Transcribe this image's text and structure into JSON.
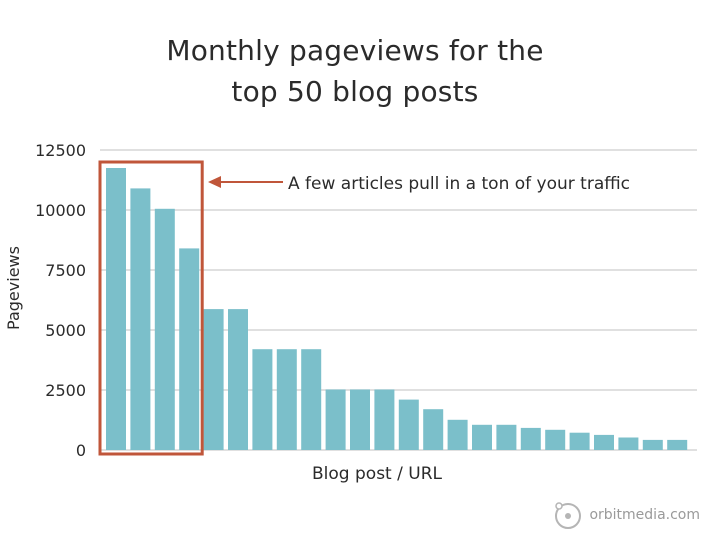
{
  "title_line1": "Monthly pageviews for the",
  "title_line2": "top 50 blog posts",
  "annotation": "A few articles pull in a ton of your traffic",
  "brand": "orbitmedia.com",
  "colors": {
    "bar": "#7bbfca",
    "highlight": "#c0563a",
    "grid": "#d6d6d6",
    "text": "#2b2b2b"
  },
  "chart_data": {
    "type": "bar",
    "xlabel": "Blog post / URL",
    "ylabel": "Pageviews",
    "ylim": [
      0,
      12500
    ],
    "yticks": [
      "12500",
      "10000",
      "7500",
      "5000",
      "2500",
      "0"
    ],
    "values": [
      11750,
      10900,
      10050,
      8400,
      5870,
      5870,
      4200,
      4200,
      4200,
      2520,
      2520,
      2520,
      2100,
      1700,
      1260,
      1050,
      1050,
      920,
      840,
      720,
      630,
      520,
      420,
      420
    ],
    "highlight_count": 4
  }
}
